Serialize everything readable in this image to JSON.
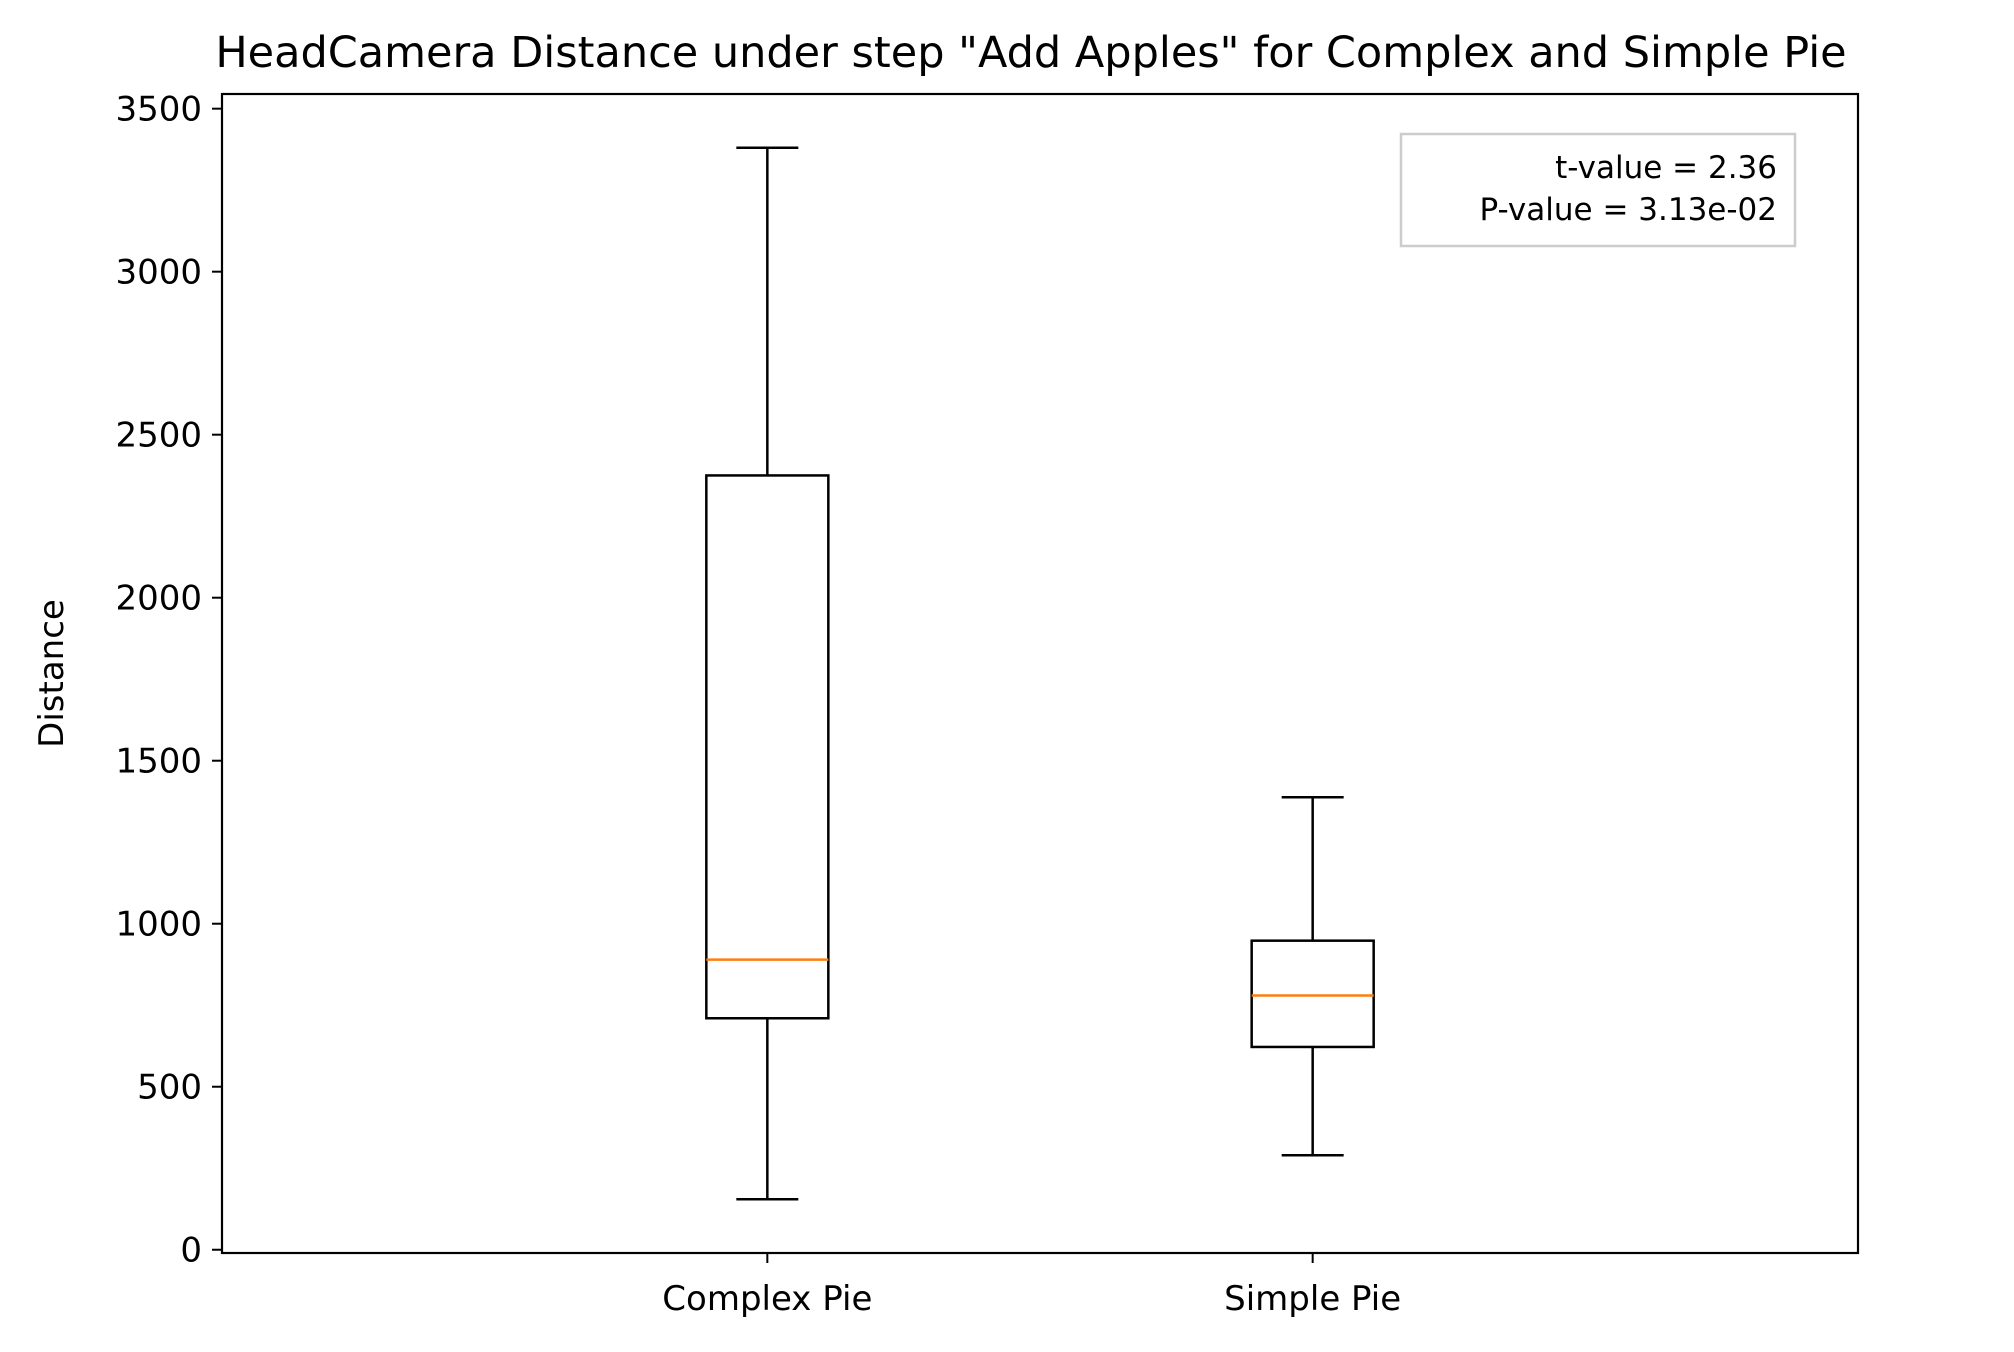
{
  "chart_data": {
    "type": "box",
    "title": "HeadCamera Distance under step \"Add Apples\" for Complex and Simple Pie",
    "xlabel": "",
    "ylabel": "Distance",
    "ylim": [
      -10,
      3545
    ],
    "yticks": [
      0,
      500,
      1000,
      1500,
      2000,
      2500,
      3000,
      3500
    ],
    "grid": false,
    "categories": [
      "Complex Pie",
      "Simple Pie"
    ],
    "boxes": [
      {
        "label": "Complex Pie",
        "whisker_low": 155,
        "q1": 710,
        "median": 890,
        "q3": 2375,
        "whisker_high": 3380
      },
      {
        "label": "Simple Pie",
        "whisker_low": 290,
        "q1": 622,
        "median": 780,
        "q3": 948,
        "whisker_high": 1388
      }
    ],
    "annotation": {
      "lines": [
        "t-value = 2.36",
        "P-value = 3.13e-02"
      ],
      "placement": "top-right"
    },
    "colors": {
      "box": "#000000",
      "median": "#ff7f0e",
      "annotation_border": "#cccccc"
    }
  }
}
